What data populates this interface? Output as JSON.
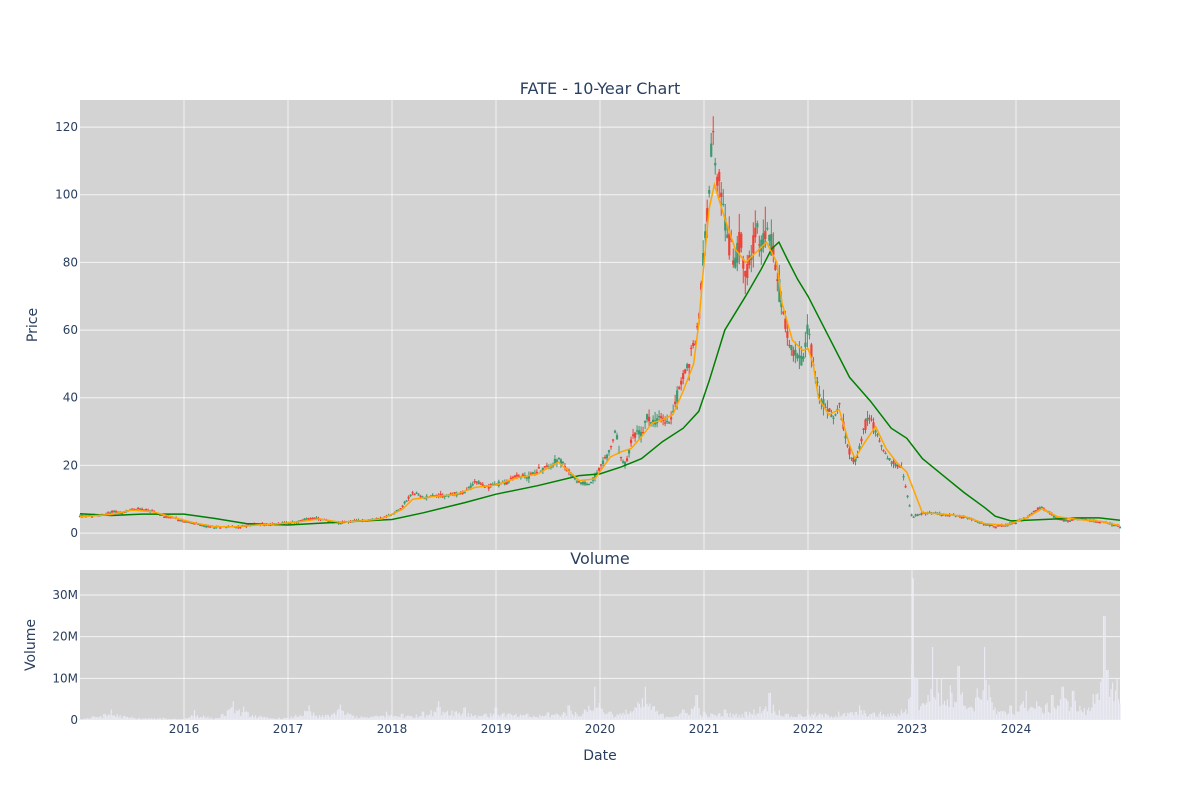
{
  "chart_data": [
    {
      "type": "candlestick",
      "title": "FATE - 10-Year Chart",
      "ylabel": "Price",
      "ylim": [
        -5,
        128
      ],
      "yticks": [
        0,
        20,
        40,
        60,
        80,
        100,
        120
      ],
      "xlim": [
        2015.0,
        2025.0
      ],
      "xticks": [
        "2016",
        "2017",
        "2018",
        "2019",
        "2020",
        "2021",
        "2022",
        "2023",
        "2024"
      ],
      "grid": true,
      "background": "#d3d3d3",
      "colors": {
        "up": "#3d9970",
        "down": "#ef4136",
        "ma_short": "#ffa500",
        "ma_long": "#008000"
      },
      "price_points": [
        [
          2015.0,
          5.0
        ],
        [
          2015.2,
          5.2
        ],
        [
          2015.33,
          6.5
        ],
        [
          2015.4,
          5.8
        ],
        [
          2015.5,
          7.0
        ],
        [
          2015.6,
          7.3
        ],
        [
          2015.7,
          6.5
        ],
        [
          2015.8,
          5.0
        ],
        [
          2015.9,
          4.5
        ],
        [
          2016.0,
          3.6
        ],
        [
          2016.1,
          2.8
        ],
        [
          2016.2,
          2.0
        ],
        [
          2016.3,
          1.8
        ],
        [
          2016.4,
          2.0
        ],
        [
          2016.5,
          1.8
        ],
        [
          2016.6,
          2.2
        ],
        [
          2016.7,
          2.6
        ],
        [
          2016.8,
          2.5
        ],
        [
          2016.9,
          2.8
        ],
        [
          2017.0,
          3.0
        ],
        [
          2017.1,
          3.4
        ],
        [
          2017.2,
          4.5
        ],
        [
          2017.3,
          4.2
        ],
        [
          2017.4,
          3.5
        ],
        [
          2017.5,
          3.0
        ],
        [
          2017.6,
          3.4
        ],
        [
          2017.7,
          3.8
        ],
        [
          2017.8,
          4.0
        ],
        [
          2017.9,
          4.4
        ],
        [
          2018.0,
          5.5
        ],
        [
          2018.1,
          8.0
        ],
        [
          2018.2,
          12.0
        ],
        [
          2018.3,
          10.5
        ],
        [
          2018.4,
          11.2
        ],
        [
          2018.5,
          11.0
        ],
        [
          2018.6,
          11.5
        ],
        [
          2018.7,
          12.0
        ],
        [
          2018.8,
          15.5
        ],
        [
          2018.9,
          13.5
        ],
        [
          2019.0,
          14.5
        ],
        [
          2019.1,
          15.0
        ],
        [
          2019.2,
          17.0
        ],
        [
          2019.3,
          16.5
        ],
        [
          2019.4,
          18.5
        ],
        [
          2019.5,
          19.5
        ],
        [
          2019.6,
          22.0
        ],
        [
          2019.7,
          18.0
        ],
        [
          2019.8,
          15.0
        ],
        [
          2019.9,
          14.5
        ],
        [
          2020.0,
          19.0
        ],
        [
          2020.1,
          25.0
        ],
        [
          2020.15,
          30.0
        ],
        [
          2020.2,
          22.0
        ],
        [
          2020.25,
          20.0
        ],
        [
          2020.3,
          27.0
        ],
        [
          2020.35,
          30.0
        ],
        [
          2020.4,
          29.0
        ],
        [
          2020.45,
          34.0
        ],
        [
          2020.5,
          33.0
        ],
        [
          2020.6,
          34.0
        ],
        [
          2020.65,
          32.0
        ],
        [
          2020.7,
          36.0
        ],
        [
          2020.75,
          42.0
        ],
        [
          2020.8,
          46.0
        ],
        [
          2020.85,
          50.0
        ],
        [
          2020.9,
          56.0
        ],
        [
          2020.95,
          62.0
        ],
        [
          2021.0,
          85.0
        ],
        [
          2021.03,
          95.0
        ],
        [
          2021.06,
          110.0
        ],
        [
          2021.09,
          118.0
        ],
        [
          2021.12,
          100.0
        ],
        [
          2021.15,
          105.0
        ],
        [
          2021.2,
          92.0
        ],
        [
          2021.25,
          85.0
        ],
        [
          2021.3,
          80.0
        ],
        [
          2021.35,
          88.0
        ],
        [
          2021.4,
          78.0
        ],
        [
          2021.45,
          82.0
        ],
        [
          2021.5,
          88.0
        ],
        [
          2021.55,
          85.0
        ],
        [
          2021.6,
          90.0
        ],
        [
          2021.65,
          85.0
        ],
        [
          2021.7,
          75.0
        ],
        [
          2021.75,
          68.0
        ],
        [
          2021.8,
          58.0
        ],
        [
          2021.85,
          55.0
        ],
        [
          2021.9,
          52.0
        ],
        [
          2021.95,
          50.0
        ],
        [
          2022.0,
          62.0
        ],
        [
          2022.05,
          50.0
        ],
        [
          2022.1,
          42.0
        ],
        [
          2022.15,
          38.0
        ],
        [
          2022.2,
          36.0
        ],
        [
          2022.25,
          34.0
        ],
        [
          2022.3,
          38.0
        ],
        [
          2022.35,
          30.0
        ],
        [
          2022.4,
          24.0
        ],
        [
          2022.45,
          21.0
        ],
        [
          2022.5,
          26.0
        ],
        [
          2022.55,
          32.0
        ],
        [
          2022.6,
          34.0
        ],
        [
          2022.65,
          30.0
        ],
        [
          2022.7,
          27.0
        ],
        [
          2022.75,
          23.0
        ],
        [
          2022.8,
          21.0
        ],
        [
          2022.85,
          20.0
        ],
        [
          2022.9,
          19.0
        ],
        [
          2022.95,
          12.0
        ],
        [
          2023.0,
          5.0
        ],
        [
          2023.1,
          5.8
        ],
        [
          2023.2,
          6.0
        ],
        [
          2023.3,
          5.5
        ],
        [
          2023.4,
          5.2
        ],
        [
          2023.5,
          4.8
        ],
        [
          2023.6,
          3.8
        ],
        [
          2023.7,
          2.6
        ],
        [
          2023.8,
          2.0
        ],
        [
          2023.9,
          2.3
        ],
        [
          2024.0,
          3.3
        ],
        [
          2024.1,
          4.5
        ],
        [
          2024.2,
          7.0
        ],
        [
          2024.25,
          7.8
        ],
        [
          2024.3,
          6.5
        ],
        [
          2024.4,
          4.0
        ],
        [
          2024.5,
          3.6
        ],
        [
          2024.6,
          4.3
        ],
        [
          2024.7,
          3.8
        ],
        [
          2024.8,
          3.4
        ],
        [
          2024.9,
          2.7
        ],
        [
          2025.0,
          2.0
        ]
      ],
      "ma_short_points": [
        [
          2015.0,
          4.8
        ],
        [
          2015.3,
          5.5
        ],
        [
          2015.5,
          6.8
        ],
        [
          2015.7,
          6.3
        ],
        [
          2015.9,
          4.6
        ],
        [
          2016.1,
          3.0
        ],
        [
          2016.3,
          1.9
        ],
        [
          2016.5,
          1.9
        ],
        [
          2016.7,
          2.4
        ],
        [
          2016.9,
          2.7
        ],
        [
          2017.1,
          3.3
        ],
        [
          2017.3,
          4.2
        ],
        [
          2017.5,
          3.2
        ],
        [
          2017.7,
          3.6
        ],
        [
          2017.9,
          4.2
        ],
        [
          2018.1,
          7.0
        ],
        [
          2018.2,
          10.0
        ],
        [
          2018.4,
          10.8
        ],
        [
          2018.6,
          11.3
        ],
        [
          2018.8,
          13.5
        ],
        [
          2019.0,
          14.2
        ],
        [
          2019.2,
          16.3
        ],
        [
          2019.4,
          17.5
        ],
        [
          2019.6,
          21.0
        ],
        [
          2019.8,
          15.5
        ],
        [
          2019.95,
          16.0
        ],
        [
          2020.1,
          22.5
        ],
        [
          2020.2,
          24.0
        ],
        [
          2020.3,
          25.0
        ],
        [
          2020.4,
          28.5
        ],
        [
          2020.5,
          32.5
        ],
        [
          2020.6,
          33.5
        ],
        [
          2020.7,
          35.0
        ],
        [
          2020.8,
          42.0
        ],
        [
          2020.9,
          50.0
        ],
        [
          2020.95,
          62.0
        ],
        [
          2021.0,
          80.0
        ],
        [
          2021.05,
          96.0
        ],
        [
          2021.1,
          103.0
        ],
        [
          2021.2,
          93.0
        ],
        [
          2021.3,
          84.0
        ],
        [
          2021.4,
          80.0
        ],
        [
          2021.5,
          83.0
        ],
        [
          2021.6,
          86.0
        ],
        [
          2021.7,
          80.0
        ],
        [
          2021.75,
          68.0
        ],
        [
          2021.85,
          57.0
        ],
        [
          2021.95,
          54.0
        ],
        [
          2022.0,
          54.5
        ],
        [
          2022.05,
          50.0
        ],
        [
          2022.1,
          40.0
        ],
        [
          2022.2,
          35.0
        ],
        [
          2022.3,
          36.5
        ],
        [
          2022.4,
          26.0
        ],
        [
          2022.45,
          22.0
        ],
        [
          2022.55,
          27.0
        ],
        [
          2022.65,
          31.5
        ],
        [
          2022.75,
          25.0
        ],
        [
          2022.85,
          21.0
        ],
        [
          2022.95,
          18.0
        ],
        [
          2023.1,
          6.0
        ],
        [
          2023.3,
          5.6
        ],
        [
          2023.5,
          5.0
        ],
        [
          2023.7,
          2.8
        ],
        [
          2023.9,
          2.3
        ],
        [
          2024.1,
          4.5
        ],
        [
          2024.25,
          7.2
        ],
        [
          2024.4,
          4.8
        ],
        [
          2024.6,
          4.0
        ],
        [
          2024.8,
          3.5
        ],
        [
          2025.0,
          2.2
        ]
      ],
      "ma_long_points": [
        [
          2015.0,
          5.7
        ],
        [
          2015.3,
          5.2
        ],
        [
          2015.6,
          5.6
        ],
        [
          2016.0,
          5.6
        ],
        [
          2016.3,
          4.3
        ],
        [
          2016.6,
          2.8
        ],
        [
          2017.0,
          2.4
        ],
        [
          2017.3,
          2.9
        ],
        [
          2017.6,
          3.4
        ],
        [
          2018.0,
          4.0
        ],
        [
          2018.3,
          6.0
        ],
        [
          2018.7,
          9.0
        ],
        [
          2019.0,
          11.5
        ],
        [
          2019.4,
          14.0
        ],
        [
          2019.8,
          17.0
        ],
        [
          2020.0,
          17.5
        ],
        [
          2020.2,
          19.5
        ],
        [
          2020.4,
          22.0
        ],
        [
          2020.6,
          27.0
        ],
        [
          2020.8,
          31.0
        ],
        [
          2020.95,
          36.0
        ],
        [
          2021.05,
          45.0
        ],
        [
          2021.2,
          60.0
        ],
        [
          2021.4,
          70.0
        ],
        [
          2021.55,
          78.0
        ],
        [
          2021.65,
          84.0
        ],
        [
          2021.72,
          86.0
        ],
        [
          2021.8,
          81.0
        ],
        [
          2021.9,
          75.0
        ],
        [
          2022.0,
          70.0
        ],
        [
          2022.2,
          58.0
        ],
        [
          2022.4,
          46.0
        ],
        [
          2022.6,
          39.0
        ],
        [
          2022.8,
          31.0
        ],
        [
          2022.95,
          28.0
        ],
        [
          2023.1,
          22.0
        ],
        [
          2023.3,
          17.0
        ],
        [
          2023.5,
          12.0
        ],
        [
          2023.7,
          7.5
        ],
        [
          2023.8,
          5.0
        ],
        [
          2023.95,
          3.6
        ],
        [
          2024.1,
          3.8
        ],
        [
          2024.4,
          4.2
        ],
        [
          2024.6,
          4.5
        ],
        [
          2024.8,
          4.5
        ],
        [
          2025.0,
          3.8
        ]
      ]
    },
    {
      "type": "bar",
      "title": "Volume",
      "xlabel": "Date",
      "ylabel": "Volume",
      "ylim": [
        0,
        36000000
      ],
      "yticks": [
        0,
        10000000,
        20000000,
        30000000
      ],
      "ytick_labels": [
        "0",
        "10M",
        "20M",
        "30M"
      ],
      "color": "#eaeaf5",
      "volume_points": [
        [
          2015.0,
          300000
        ],
        [
          2015.3,
          2500000
        ],
        [
          2015.5,
          800000
        ],
        [
          2015.8,
          600000
        ],
        [
          2016.0,
          400000
        ],
        [
          2016.1,
          2400000
        ],
        [
          2016.3,
          500000
        ],
        [
          2016.47,
          4500000
        ],
        [
          2016.57,
          3200000
        ],
        [
          2016.8,
          700000
        ],
        [
          2017.0,
          800000
        ],
        [
          2017.2,
          3500000
        ],
        [
          2017.3,
          1200000
        ],
        [
          2017.5,
          3700000
        ],
        [
          2017.7,
          900000
        ],
        [
          2017.95,
          2000000
        ],
        [
          2018.1,
          1500000
        ],
        [
          2018.3,
          2000000
        ],
        [
          2018.45,
          4500000
        ],
        [
          2018.7,
          3000000
        ],
        [
          2018.9,
          1500000
        ],
        [
          2019.0,
          3000000
        ],
        [
          2019.3,
          1500000
        ],
        [
          2019.5,
          1800000
        ],
        [
          2019.7,
          3500000
        ],
        [
          2019.85,
          2500000
        ],
        [
          2019.95,
          8000000
        ],
        [
          2020.1,
          2000000
        ],
        [
          2020.25,
          2500000
        ],
        [
          2020.44,
          8000000
        ],
        [
          2020.6,
          1500000
        ],
        [
          2020.8,
          2500000
        ],
        [
          2020.93,
          6000000
        ],
        [
          2021.0,
          2000000
        ],
        [
          2021.2,
          2500000
        ],
        [
          2021.4,
          2000000
        ],
        [
          2021.63,
          6500000
        ],
        [
          2021.8,
          1500000
        ],
        [
          2022.0,
          2500000
        ],
        [
          2022.3,
          2000000
        ],
        [
          2022.5,
          3500000
        ],
        [
          2022.7,
          2000000
        ],
        [
          2022.9,
          2500000
        ],
        [
          2022.97,
          5000000
        ],
        [
          2023.01,
          34000000
        ],
        [
          2023.05,
          10000000
        ],
        [
          2023.1,
          4000000
        ],
        [
          2023.2,
          17500000
        ],
        [
          2023.28,
          10000000
        ],
        [
          2023.45,
          13000000
        ],
        [
          2023.55,
          3000000
        ],
        [
          2023.7,
          17500000
        ],
        [
          2023.8,
          3000000
        ],
        [
          2023.95,
          3500000
        ],
        [
          2024.1,
          7000000
        ],
        [
          2024.2,
          4500000
        ],
        [
          2024.35,
          6000000
        ],
        [
          2024.45,
          8000000
        ],
        [
          2024.55,
          7000000
        ],
        [
          2024.7,
          3000000
        ],
        [
          2024.85,
          25000000
        ],
        [
          2024.88,
          12000000
        ],
        [
          2024.93,
          9000000
        ],
        [
          2024.97,
          10000000
        ]
      ]
    }
  ]
}
